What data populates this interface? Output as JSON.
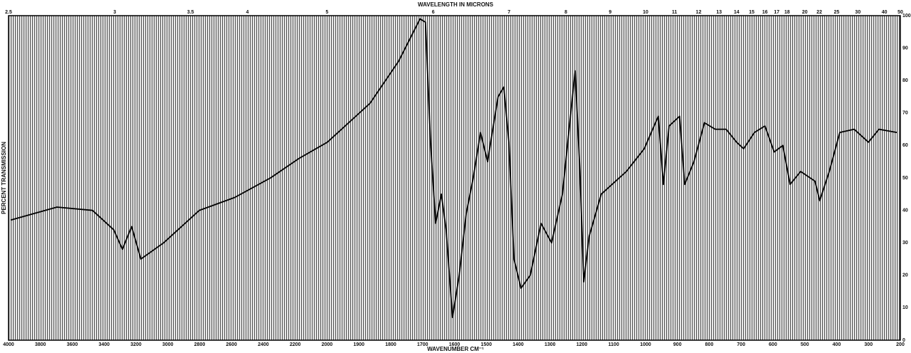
{
  "chart_data": {
    "type": "line",
    "title": "WAVELENGTH IN MICRONS",
    "x_label": "WAVENUMBER CM⁻¹",
    "y_label": "PERCENT TRANSMISSION",
    "x": [
      3987,
      3696,
      3473,
      3339,
      3285,
      3227,
      3169,
      3026,
      2802,
      2579,
      2355,
      2176,
      1999,
      1865,
      1775,
      1708,
      1691,
      1675,
      1659,
      1641,
      1626,
      1606,
      1585,
      1563,
      1541,
      1518,
      1496,
      1463,
      1445,
      1429,
      1413,
      1391,
      1362,
      1328,
      1295,
      1261,
      1221,
      1206,
      1194,
      1177,
      1139,
      1060,
      1004,
      960,
      944,
      926,
      893,
      877,
      848,
      815,
      781,
      747,
      714,
      692,
      658,
      625,
      596,
      569,
      546,
      513,
      468,
      453,
      423,
      390,
      345,
      300,
      267,
      211
    ],
    "series": [
      {
        "name": "spectrum",
        "color": "#000000",
        "values": [
          37,
          41,
          40,
          34,
          28,
          35,
          25,
          30,
          40,
          44,
          50,
          56,
          61,
          73,
          86,
          99,
          98,
          61,
          36,
          45,
          34,
          7,
          20,
          39,
          50,
          64,
          55,
          75,
          78,
          61,
          25,
          16,
          20,
          36,
          30,
          45,
          83,
          52,
          18,
          32,
          45,
          52,
          59,
          69,
          48,
          66,
          69,
          48,
          55,
          67,
          65,
          65,
          61,
          59,
          64,
          66,
          58,
          60,
          48,
          52,
          49,
          43,
          52,
          64,
          65,
          61,
          65,
          64
        ]
      }
    ],
    "xlim": [
      4000,
      200
    ],
    "xticks": [
      4000,
      3800,
      3600,
      3400,
      3200,
      3000,
      2800,
      2600,
      2400,
      2200,
      2000,
      1900,
      1800,
      1700,
      1600,
      1500,
      1400,
      1300,
      1200,
      1100,
      1000,
      900,
      800,
      700,
      600,
      500,
      400,
      300,
      200
    ],
    "x2ticks": [
      2.5,
      3,
      3.5,
      4,
      5,
      6,
      7,
      8,
      9,
      10,
      11,
      12,
      13,
      14,
      15,
      16,
      17,
      18,
      20,
      22,
      25,
      30,
      40,
      50
    ],
    "ylim": [
      0,
      100
    ],
    "yticks": [
      0,
      10,
      20,
      30,
      40,
      50,
      60,
      70,
      80,
      90,
      100
    ],
    "grid": true
  }
}
